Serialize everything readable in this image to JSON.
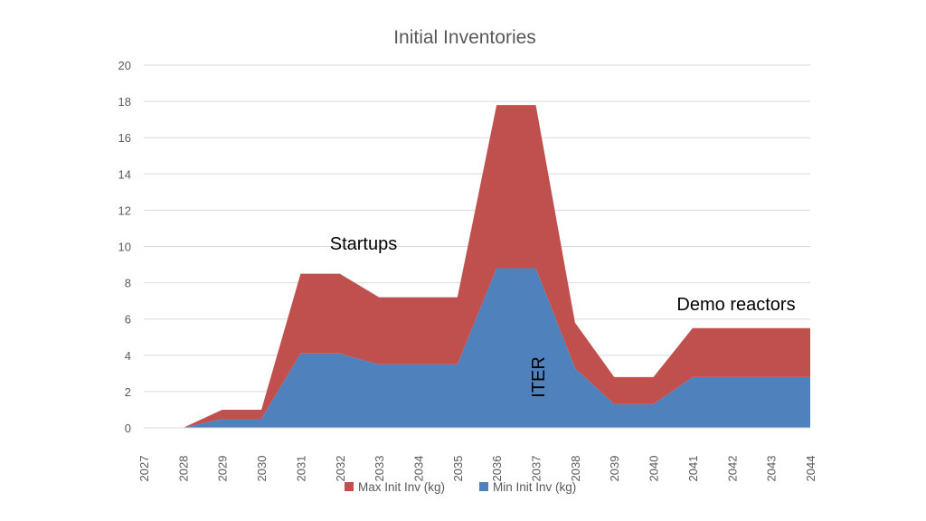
{
  "chart_data": {
    "type": "area",
    "stacked": true,
    "title": "Initial Inventories",
    "xlabel": "",
    "ylabel": "",
    "categories": [
      "2027",
      "2028",
      "2029",
      "2030",
      "2031",
      "2032",
      "2033",
      "2034",
      "2035",
      "2036",
      "2037",
      "2038",
      "2039",
      "2040",
      "2041",
      "2042",
      "2043",
      "2044"
    ],
    "ylim": [
      0,
      20
    ],
    "yticks": [
      0,
      2,
      4,
      6,
      8,
      10,
      12,
      14,
      16,
      18,
      20
    ],
    "grid": "horizontal",
    "legend_position": "bottom",
    "series": [
      {
        "name": "Min Init Inv (kg)",
        "color": "#4f81bd",
        "values": [
          null,
          0,
          0.5,
          0.5,
          4.1,
          4.1,
          3.5,
          3.5,
          3.5,
          8.8,
          8.8,
          3.3,
          1.3,
          1.3,
          2.8,
          2.8,
          2.8,
          2.8
        ]
      },
      {
        "name": "Max Init Inv (kg)",
        "color": "#c0504d",
        "values": [
          null,
          0,
          0.5,
          0.5,
          4.4,
          4.4,
          3.7,
          3.7,
          3.7,
          9.0,
          9.0,
          2.5,
          1.5,
          1.5,
          2.7,
          2.7,
          2.7,
          2.7
        ]
      }
    ],
    "annotations": [
      {
        "text": "Startups"
      },
      {
        "text": "ITER"
      },
      {
        "text": "Demo reactors"
      }
    ]
  }
}
